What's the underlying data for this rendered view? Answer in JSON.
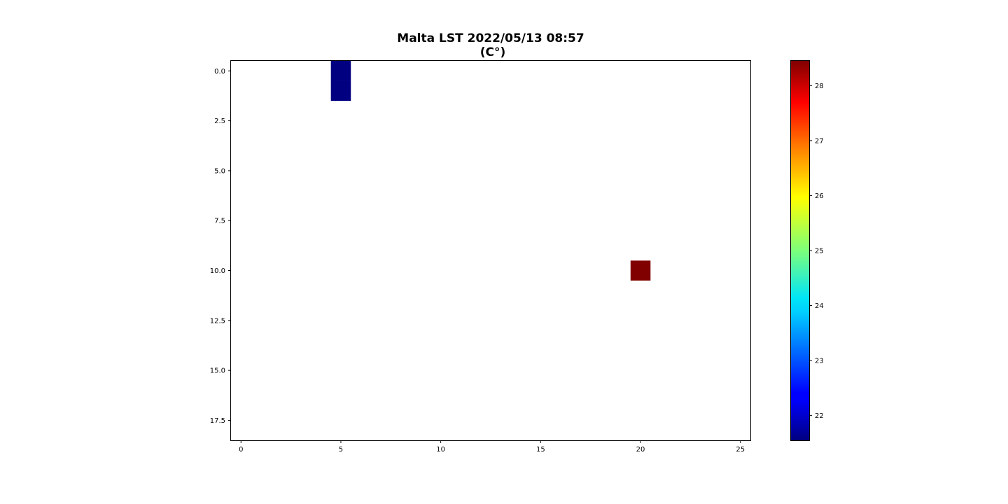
{
  "chart_data": {
    "type": "heatmap",
    "title": "Malta LST 2022/05/13 08:57",
    "subtitle": "(C°)",
    "xlabel": "",
    "ylabel": "",
    "grid_size": {
      "cols": 26,
      "rows": 19
    },
    "xlim": [
      -0.5,
      25.5
    ],
    "ylim": [
      18.5,
      -0.5
    ],
    "y_inverted": true,
    "x_ticks": [
      0,
      5,
      10,
      15,
      20,
      25
    ],
    "x_tick_labels": [
      "0",
      "5",
      "10",
      "15",
      "20",
      "25"
    ],
    "y_ticks": [
      0,
      2.5,
      5,
      7.5,
      10,
      12.5,
      15,
      17.5
    ],
    "y_tick_labels": [
      "0.0",
      "2.5",
      "5.0",
      "7.5",
      "10.0",
      "12.5",
      "15.0",
      "17.5"
    ],
    "cells": [
      {
        "x": 5,
        "y": 0,
        "value": 21.55
      },
      {
        "x": 5,
        "y": 1,
        "value": 21.55
      },
      {
        "x": 20,
        "y": 10,
        "value": 28.45
      }
    ],
    "empty_cells": "no data (white)",
    "colormap": "jet",
    "colorbar": {
      "range": [
        21.55,
        28.45
      ],
      "ticks": [
        22,
        23,
        24,
        25,
        26,
        27,
        28
      ],
      "tick_labels": [
        "22",
        "23",
        "24",
        "25",
        "26",
        "27",
        "28"
      ],
      "placement": "right"
    },
    "grid": false
  }
}
